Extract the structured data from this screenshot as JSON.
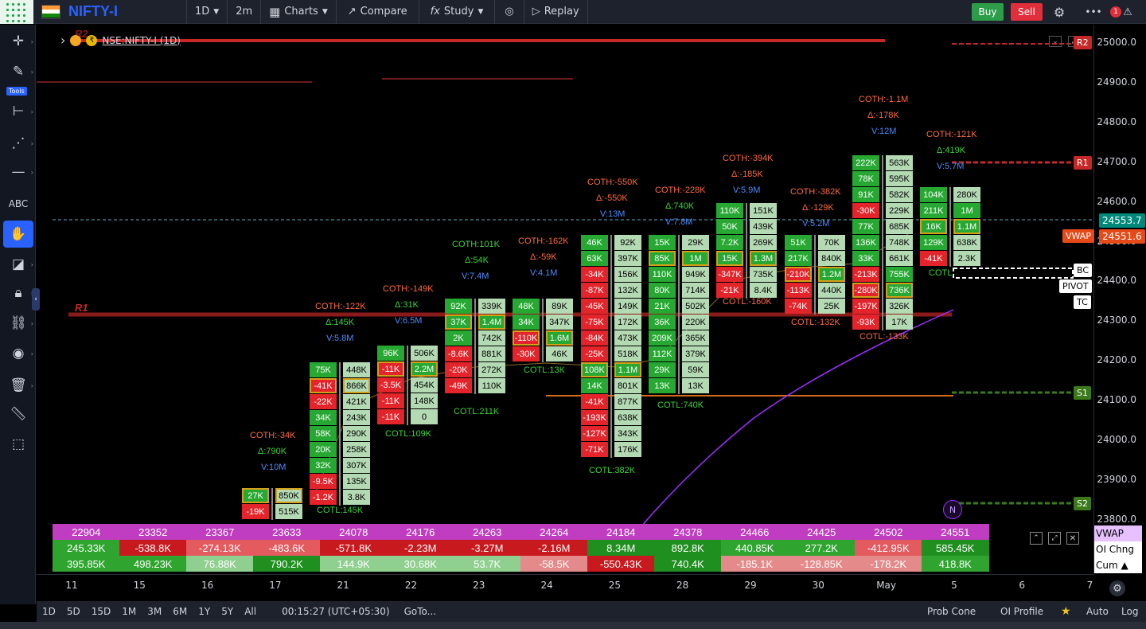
{
  "toolbar": {
    "symbol": "NIFTY-I",
    "interval": "1D",
    "sub_interval": "2m",
    "charts": "Charts",
    "compare": "Compare",
    "study": "Study",
    "replay": "Replay",
    "buy": "Buy",
    "sell": "Sell",
    "alert_count": "1"
  },
  "legend": {
    "symbol": "NSE:NIFTY-I (1D)"
  },
  "left_tools": {
    "tools_label": "Tools"
  },
  "price_axis": {
    "ticks": [
      "25000.0",
      "24900.0",
      "24800.0",
      "24700.0",
      "24600.0",
      "24500.0",
      "24400.0",
      "24300.0",
      "24200.0",
      "24100.0",
      "24000.0",
      "23900.0",
      "23800.0"
    ],
    "last_price": "24553.7",
    "vwap_price": "24551.6",
    "labels": {
      "r2": "R2",
      "r1": "R1",
      "bc": "BC",
      "pivot": "PIVOT",
      "tc": "TC",
      "s1": "S1",
      "s2": "S2",
      "vwap": "VWAP"
    }
  },
  "chart_labels": {
    "r1_left": "R1",
    "r2_left": "R2",
    "n_marker": "N"
  },
  "annotations": [
    {
      "t": "COTH:-34K",
      "c": "coth"
    },
    {
      "t": "Δ:790K",
      "c": "delta"
    },
    {
      "t": "V:10M",
      "c": "vol"
    },
    {
      "t": "COTL:145K",
      "c": "cotl"
    },
    {
      "t": "COTH:-122K",
      "c": "coth"
    },
    {
      "t": "Δ:145K",
      "c": "delta"
    },
    {
      "t": "V:5.8M",
      "c": "vol"
    },
    {
      "t": "COTL:109K",
      "c": "cotl"
    },
    {
      "t": "COTH:-149K",
      "c": "coth"
    },
    {
      "t": "Δ:31K",
      "c": "delta"
    },
    {
      "t": "V:6.5M",
      "c": "vol"
    },
    {
      "t": "COTH:101K",
      "c": "cotl"
    },
    {
      "t": "Δ:54K",
      "c": "delta"
    },
    {
      "t": "V:7.4M",
      "c": "vol"
    },
    {
      "t": "COTL:211K",
      "c": "cotl"
    },
    {
      "t": "COTH:-162K",
      "c": "coth"
    },
    {
      "t": "Δ:-59K",
      "c": "deltan"
    },
    {
      "t": "V:4.1M",
      "c": "vol"
    },
    {
      "t": "COTL:13K",
      "c": "cotl"
    },
    {
      "t": "COTH:-550K",
      "c": "coth"
    },
    {
      "t": "Δ:-550K",
      "c": "deltan"
    },
    {
      "t": "V:13M",
      "c": "vol"
    },
    {
      "t": "COTL:382K",
      "c": "cotl"
    },
    {
      "t": "COTH:-228K",
      "c": "coth"
    },
    {
      "t": "Δ:740K",
      "c": "delta"
    },
    {
      "t": "V:7.8M",
      "c": "vol"
    },
    {
      "t": "COTL:740K",
      "c": "cotl"
    },
    {
      "t": "COTH:-394K",
      "c": "coth"
    },
    {
      "t": "Δ:-185K",
      "c": "deltan"
    },
    {
      "t": "V:5.9M",
      "c": "vol"
    },
    {
      "t": "COTL:-160K",
      "c": "cotln"
    },
    {
      "t": "COTH:-382K",
      "c": "coth"
    },
    {
      "t": "Δ:-129K",
      "c": "deltan"
    },
    {
      "t": "V:5.2M",
      "c": "vol"
    },
    {
      "t": "COTL:-132K",
      "c": "cotln"
    },
    {
      "t": "COTH:-1.1M",
      "c": "coth"
    },
    {
      "t": "Δ:-178K",
      "c": "deltan"
    },
    {
      "t": "V:12M",
      "c": "vol"
    },
    {
      "t": "COTL:-133K",
      "c": "cotln"
    },
    {
      "t": "COTH:-121K",
      "c": "coth"
    },
    {
      "t": "Δ:419K",
      "c": "delta"
    },
    {
      "t": "V:5.7M",
      "c": "vol"
    },
    {
      "t": "COTL:",
      "c": "cotl"
    }
  ],
  "candles": [
    {
      "l": [
        [
          "27K",
          "pos",
          1
        ],
        [
          "-19K",
          "neg",
          0
        ]
      ],
      "r": [
        [
          "850K",
          "lt",
          1
        ],
        [
          "515K",
          "lt",
          0
        ]
      ]
    },
    {
      "l": [
        [
          "75K",
          "pos",
          0
        ],
        [
          "-41K",
          "neg",
          1
        ],
        [
          "-22K",
          "neg",
          0
        ],
        [
          "34K",
          "pos",
          0
        ],
        [
          "58K",
          "pos",
          0
        ],
        [
          "20K",
          "pos",
          0
        ],
        [
          "32K",
          "pos",
          0
        ],
        [
          "-9.5K",
          "neg",
          0
        ],
        [
          "-1.2K",
          "neg",
          0
        ]
      ],
      "r": [
        [
          "448K",
          "lt",
          0
        ],
        [
          "866K",
          "lt",
          1
        ],
        [
          "421K",
          "lt",
          0
        ],
        [
          "243K",
          "lt",
          0
        ],
        [
          "290K",
          "lt",
          0
        ],
        [
          "258K",
          "lt",
          0
        ],
        [
          "307K",
          "lt",
          0
        ],
        [
          "135K",
          "lt",
          0
        ],
        [
          "3.8K",
          "lt",
          0
        ]
      ]
    },
    {
      "l": [
        [
          "96K",
          "pos",
          0
        ],
        [
          "-11K",
          "neg",
          1
        ],
        [
          "-3.5K",
          "neg",
          0
        ],
        [
          "-11K",
          "neg",
          0
        ],
        [
          "-11K",
          "neg",
          0
        ]
      ],
      "r": [
        [
          "506K",
          "lt",
          0
        ],
        [
          "2.2M",
          "pos",
          1
        ],
        [
          "454K",
          "lt",
          0
        ],
        [
          "148K",
          "lt",
          0
        ],
        [
          "0",
          "lt",
          0
        ]
      ]
    },
    {
      "l": [
        [
          "92K",
          "pos",
          0
        ],
        [
          "37K",
          "pos",
          1
        ],
        [
          "2K",
          "pos",
          0
        ],
        [
          "-8.6K",
          "neg",
          0
        ],
        [
          "-20K",
          "neg",
          0
        ],
        [
          "-49K",
          "neg",
          0
        ]
      ],
      "r": [
        [
          "339K",
          "lt",
          0
        ],
        [
          "1.4M",
          "pos",
          1
        ],
        [
          "742K",
          "lt",
          0
        ],
        [
          "881K",
          "lt",
          0
        ],
        [
          "272K",
          "lt",
          0
        ],
        [
          "110K",
          "lt",
          0
        ]
      ]
    },
    {
      "l": [
        [
          "48K",
          "pos",
          0
        ],
        [
          "34K",
          "pos",
          0
        ],
        [
          "-110K",
          "neg",
          1
        ],
        [
          "-30K",
          "neg",
          0
        ]
      ],
      "r": [
        [
          "89K",
          "lt",
          0
        ],
        [
          "347K",
          "lt",
          0
        ],
        [
          "1.6M",
          "pos",
          1
        ],
        [
          "46K",
          "lt",
          0
        ]
      ]
    },
    {
      "l": [
        [
          "46K",
          "pos",
          0
        ],
        [
          "63K",
          "pos",
          0
        ],
        [
          "-34K",
          "neg",
          0
        ],
        [
          "-87K",
          "neg",
          0
        ],
        [
          "-45K",
          "neg",
          0
        ],
        [
          "-75K",
          "neg",
          0
        ],
        [
          "-84K",
          "neg",
          0
        ],
        [
          "-25K",
          "neg",
          0
        ],
        [
          "108K",
          "pos",
          1
        ],
        [
          "14K",
          "pos",
          0
        ],
        [
          "-41K",
          "neg",
          0
        ],
        [
          "-193K",
          "neg",
          0
        ],
        [
          "-127K",
          "neg",
          0
        ],
        [
          "-71K",
          "neg",
          0
        ]
      ],
      "r": [
        [
          "92K",
          "lt",
          0
        ],
        [
          "397K",
          "lt",
          0
        ],
        [
          "156K",
          "lt",
          0
        ],
        [
          "132K",
          "lt",
          0
        ],
        [
          "149K",
          "lt",
          0
        ],
        [
          "172K",
          "lt",
          0
        ],
        [
          "473K",
          "lt",
          0
        ],
        [
          "518K",
          "lt",
          0
        ],
        [
          "1.1M",
          "pos",
          1
        ],
        [
          "801K",
          "lt",
          0
        ],
        [
          "877K",
          "lt",
          0
        ],
        [
          "638K",
          "lt",
          0
        ],
        [
          "343K",
          "lt",
          0
        ],
        [
          "176K",
          "lt",
          0
        ]
      ]
    },
    {
      "l": [
        [
          "15K",
          "pos",
          0
        ],
        [
          "85K",
          "pos",
          1
        ],
        [
          "110K",
          "pos",
          0
        ],
        [
          "80K",
          "pos",
          0
        ],
        [
          "21K",
          "pos",
          0
        ],
        [
          "36K",
          "pos",
          0
        ],
        [
          "209K",
          "pos",
          0
        ],
        [
          "112K",
          "pos",
          0
        ],
        [
          "29K",
          "pos",
          0
        ],
        [
          "13K",
          "pos",
          0
        ]
      ],
      "r": [
        [
          "29K",
          "lt",
          0
        ],
        [
          "1M",
          "pos",
          1
        ],
        [
          "949K",
          "lt",
          0
        ],
        [
          "714K",
          "lt",
          0
        ],
        [
          "502K",
          "lt",
          0
        ],
        [
          "220K",
          "lt",
          0
        ],
        [
          "365K",
          "lt",
          0
        ],
        [
          "379K",
          "lt",
          0
        ],
        [
          "59K",
          "lt",
          0
        ],
        [
          "13K",
          "lt",
          0
        ]
      ]
    },
    {
      "l": [
        [
          "110K",
          "pos",
          0
        ],
        [
          "50K",
          "pos",
          0
        ],
        [
          "7.2K",
          "pos",
          0
        ],
        [
          "15K",
          "pos",
          1
        ],
        [
          "-347K",
          "neg",
          0
        ],
        [
          "-21K",
          "neg",
          0
        ]
      ],
      "r": [
        [
          "151K",
          "lt",
          0
        ],
        [
          "439K",
          "lt",
          0
        ],
        [
          "269K",
          "lt",
          0
        ],
        [
          "1.3M",
          "pos",
          1
        ],
        [
          "735K",
          "lt",
          0
        ],
        [
          "8.4K",
          "lt",
          0
        ]
      ]
    },
    {
      "l": [
        [
          "51K",
          "pos",
          0
        ],
        [
          "217K",
          "pos",
          0
        ],
        [
          "-210K",
          "neg",
          1
        ],
        [
          "-113K",
          "neg",
          0
        ],
        [
          "-74K",
          "neg",
          0
        ]
      ],
      "r": [
        [
          "70K",
          "lt",
          0
        ],
        [
          "840K",
          "lt",
          0
        ],
        [
          "1.2M",
          "pos",
          1
        ],
        [
          "440K",
          "lt",
          0
        ],
        [
          "25K",
          "lt",
          0
        ]
      ]
    },
    {
      "l": [
        [
          "222K",
          "pos",
          0
        ],
        [
          "78K",
          "pos",
          0
        ],
        [
          "91K",
          "pos",
          0
        ],
        [
          "-30K",
          "neg",
          0
        ],
        [
          "77K",
          "pos",
          0
        ],
        [
          "136K",
          "pos",
          0
        ],
        [
          "33K",
          "pos",
          0
        ],
        [
          "-213K",
          "neg",
          0
        ],
        [
          "-280K",
          "neg",
          1
        ],
        [
          "-197K",
          "neg",
          0
        ],
        [
          "-93K",
          "neg",
          0
        ]
      ],
      "r": [
        [
          "563K",
          "lt",
          0
        ],
        [
          "595K",
          "lt",
          0
        ],
        [
          "582K",
          "lt",
          0
        ],
        [
          "229K",
          "lt",
          0
        ],
        [
          "685K",
          "lt",
          0
        ],
        [
          "748K",
          "lt",
          0
        ],
        [
          "661K",
          "lt",
          0
        ],
        [
          "755K",
          "pos",
          0
        ],
        [
          "736K",
          "pos",
          1
        ],
        [
          "326K",
          "lt",
          0
        ],
        [
          "17K",
          "lt",
          0
        ]
      ]
    },
    {
      "l": [
        [
          "104K",
          "pos",
          0
        ],
        [
          "211K",
          "pos",
          0
        ],
        [
          "16K",
          "pos",
          1
        ],
        [
          "129K",
          "pos",
          0
        ],
        [
          "-41K",
          "neg",
          0
        ]
      ],
      "r": [
        [
          "280K",
          "lt",
          0
        ],
        [
          "1M",
          "pos",
          0
        ],
        [
          "1.1M",
          "pos",
          1
        ],
        [
          "638K",
          "lt",
          0
        ],
        [
          "2.3K",
          "lt",
          0
        ]
      ]
    }
  ],
  "data_table": {
    "row1": [
      "22904",
      "23352",
      "23367",
      "23633",
      "24078",
      "24176",
      "24263",
      "24264",
      "24184",
      "24378",
      "24466",
      "24425",
      "24502",
      "24551"
    ],
    "row2": [
      "245.33K",
      "-538.8K",
      "-274.13K",
      "-483.6K",
      "-571.8K",
      "-2.23M",
      "-3.27M",
      "-2.16M",
      "8.34M",
      "892.8K",
      "440.85K",
      "277.2K",
      "-412.95K",
      "585.45K"
    ],
    "row3": [
      "395.85K",
      "498.23K",
      "76.88K",
      "790.2K",
      "144.9K",
      "30.68K",
      "53.7K",
      "-58.5K",
      "-550.43K",
      "740.4K",
      "-185.1K",
      "-128.85K",
      "-178.2K",
      "418.8K"
    ],
    "labels": [
      "VWAP",
      "OI Chng",
      "Cum ▲"
    ]
  },
  "time_axis": [
    "11",
    "15",
    "16",
    "17",
    "21",
    "22",
    "23",
    "24",
    "25",
    "28",
    "29",
    "30",
    "May",
    "5",
    "6",
    "7"
  ],
  "bottom_bar": {
    "ranges": [
      "1D",
      "5D",
      "15D",
      "1M",
      "3M",
      "6M",
      "1Y",
      "5Y",
      "All"
    ],
    "clock": "00:15:27 (UTC+05:30)",
    "goto": "GoTo...",
    "prob_cone": "Prob Cone",
    "oi_profile": "OI Profile",
    "auto": "Auto",
    "log": "Log"
  },
  "colors": {
    "positive": "#27a832",
    "negative": "#e3242b",
    "accent": "#2962ff",
    "vwap": "#9b30ff"
  }
}
